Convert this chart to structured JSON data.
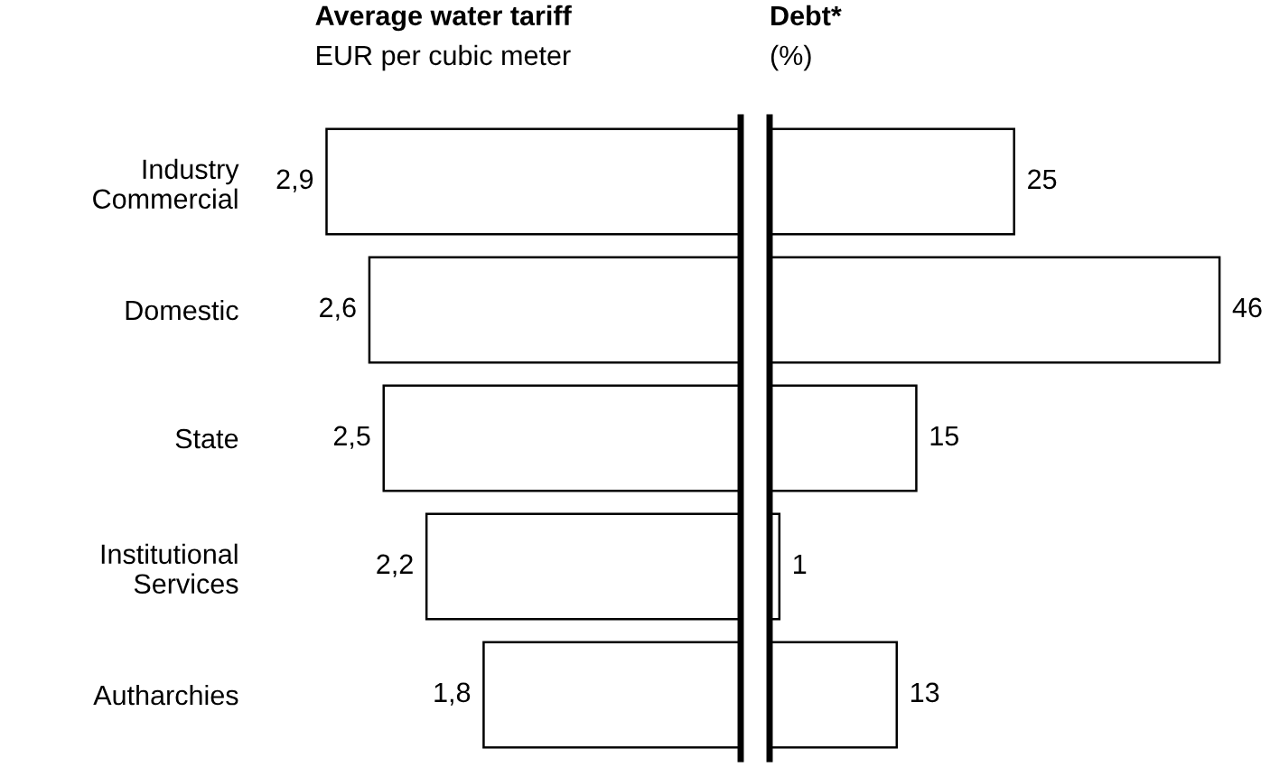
{
  "chart_data": [
    {
      "type": "bar",
      "orientation": "horizontal",
      "title": "Average water tariff",
      "subtitle": "EUR per cubic meter",
      "categories": [
        "Industry\nCommercial",
        "Domestic",
        "State",
        "Institutional\nServices",
        "Autharchies"
      ],
      "values": [
        2.9,
        2.6,
        2.5,
        2.2,
        1.8
      ],
      "value_labels": [
        "2,9",
        "2,6",
        "2,5",
        "2,2",
        "1,8"
      ],
      "color": "#ffffff",
      "tick_labels": "y"
    },
    {
      "type": "bar",
      "orientation": "horizontal",
      "title": "Debt*",
      "subtitle": "(%)",
      "categories": [
        null,
        null,
        null,
        null,
        null
      ],
      "values": [
        25,
        46,
        15,
        1,
        13
      ],
      "data_labels": true,
      "color": "#ffffff"
    }
  ]
}
